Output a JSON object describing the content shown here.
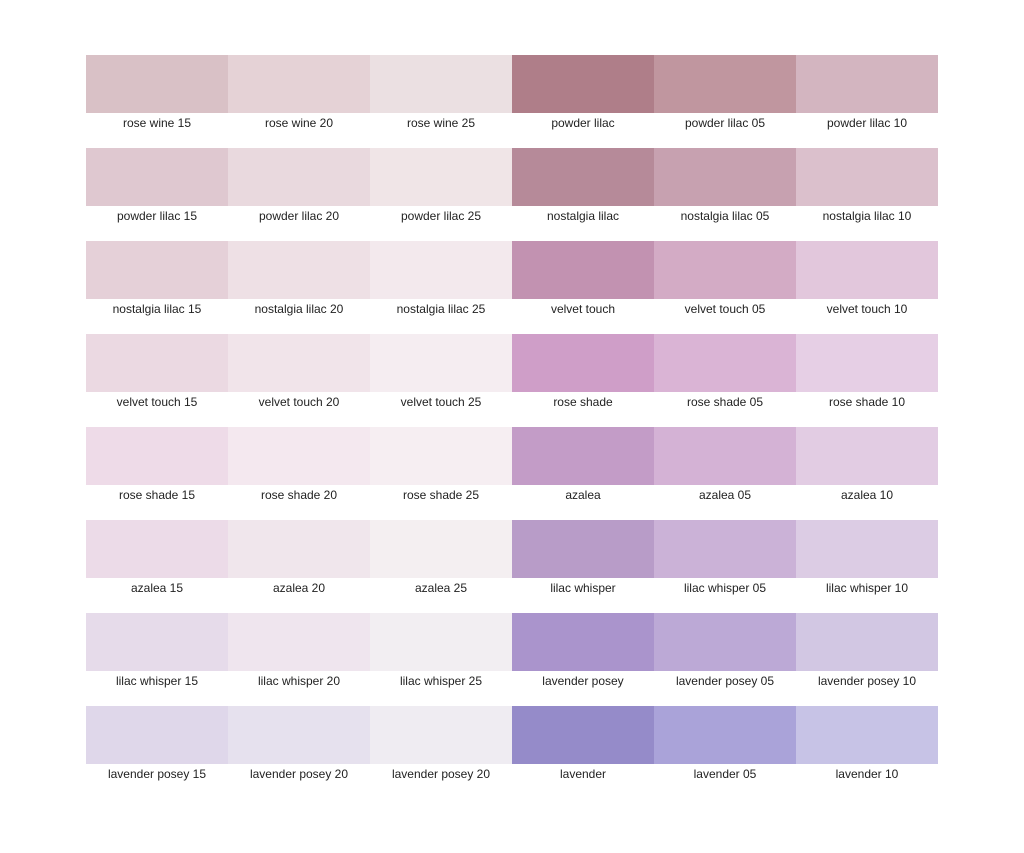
{
  "rows": [
    [
      {
        "label": "rose wine 15",
        "color": "#d9c1c6"
      },
      {
        "label": "rose wine 20",
        "color": "#e5d2d6"
      },
      {
        "label": "rose wine 25",
        "color": "#ebe0e2"
      },
      {
        "label": "powder lilac",
        "color": "#af7e89"
      },
      {
        "label": "powder lilac 05",
        "color": "#c0969f"
      },
      {
        "label": "powder lilac 10",
        "color": "#d3b5c0"
      }
    ],
    [
      {
        "label": "powder lilac 15",
        "color": "#dfc8d0"
      },
      {
        "label": "powder lilac 20",
        "color": "#e9d9de"
      },
      {
        "label": "powder lilac 25",
        "color": "#f0e5e7"
      },
      {
        "label": "nostalgia lilac",
        "color": "#b68a99"
      },
      {
        "label": "nostalgia lilac 05",
        "color": "#c7a1b0"
      },
      {
        "label": "nostalgia lilac 10",
        "color": "#dbc0cc"
      }
    ],
    [
      {
        "label": "nostalgia lilac 15",
        "color": "#e5d0d8"
      },
      {
        "label": "nostalgia lilac 20",
        "color": "#eee0e5"
      },
      {
        "label": "nostalgia lilac 25",
        "color": "#f3e9ed"
      },
      {
        "label": "velvet touch",
        "color": "#c292b1"
      },
      {
        "label": "velvet touch 05",
        "color": "#d3abc5"
      },
      {
        "label": "velvet touch 10",
        "color": "#e2c7dc"
      }
    ],
    [
      {
        "label": "velvet touch 15",
        "color": "#ebd9e2"
      },
      {
        "label": "velvet touch 20",
        "color": "#f1e4ea"
      },
      {
        "label": "velvet touch 25",
        "color": "#f5edf1"
      },
      {
        "label": "rose shade",
        "color": "#cf9ec8"
      },
      {
        "label": "rose shade 05",
        "color": "#dab4d5"
      },
      {
        "label": "rose shade 10",
        "color": "#e6cfe5"
      }
    ],
    [
      {
        "label": "rose shade 15",
        "color": "#eedbe8"
      },
      {
        "label": "rose shade 20",
        "color": "#f4e8ef"
      },
      {
        "label": "rose shade 25",
        "color": "#f6eef2"
      },
      {
        "label": "azalea",
        "color": "#c39cc7"
      },
      {
        "label": "azalea 05",
        "color": "#d4b2d5"
      },
      {
        "label": "azalea 10",
        "color": "#e2cce3"
      }
    ],
    [
      {
        "label": "azalea 15",
        "color": "#ecdbe8"
      },
      {
        "label": "azalea 20",
        "color": "#f0e6ec"
      },
      {
        "label": "azalea 25",
        "color": "#f4eff1"
      },
      {
        "label": "lilac whisper",
        "color": "#b89cc8"
      },
      {
        "label": "lilac whisper 05",
        "color": "#cbb2d7"
      },
      {
        "label": "lilac whisper 10",
        "color": "#dccce4"
      }
    ],
    [
      {
        "label": "lilac whisper 15",
        "color": "#e6dbea"
      },
      {
        "label": "lilac whisper 20",
        "color": "#efe5ee"
      },
      {
        "label": "lilac whisper 25",
        "color": "#f2eef2"
      },
      {
        "label": "lavender posey",
        "color": "#aa94cc"
      },
      {
        "label": "lavender posey 05",
        "color": "#bca9d6"
      },
      {
        "label": "lavender posey 10",
        "color": "#d2c7e3"
      }
    ],
    [
      {
        "label": "lavender posey 15",
        "color": "#dfd7ea"
      },
      {
        "label": "lavender posey 20",
        "color": "#e6e1ee"
      },
      {
        "label": "lavender posey 20",
        "color": "#efecf2"
      },
      {
        "label": "lavender",
        "color": "#958bc9"
      },
      {
        "label": "lavender 05",
        "color": "#aaa3d9"
      },
      {
        "label": "lavender 10",
        "color": "#c7c3e6"
      }
    ]
  ]
}
